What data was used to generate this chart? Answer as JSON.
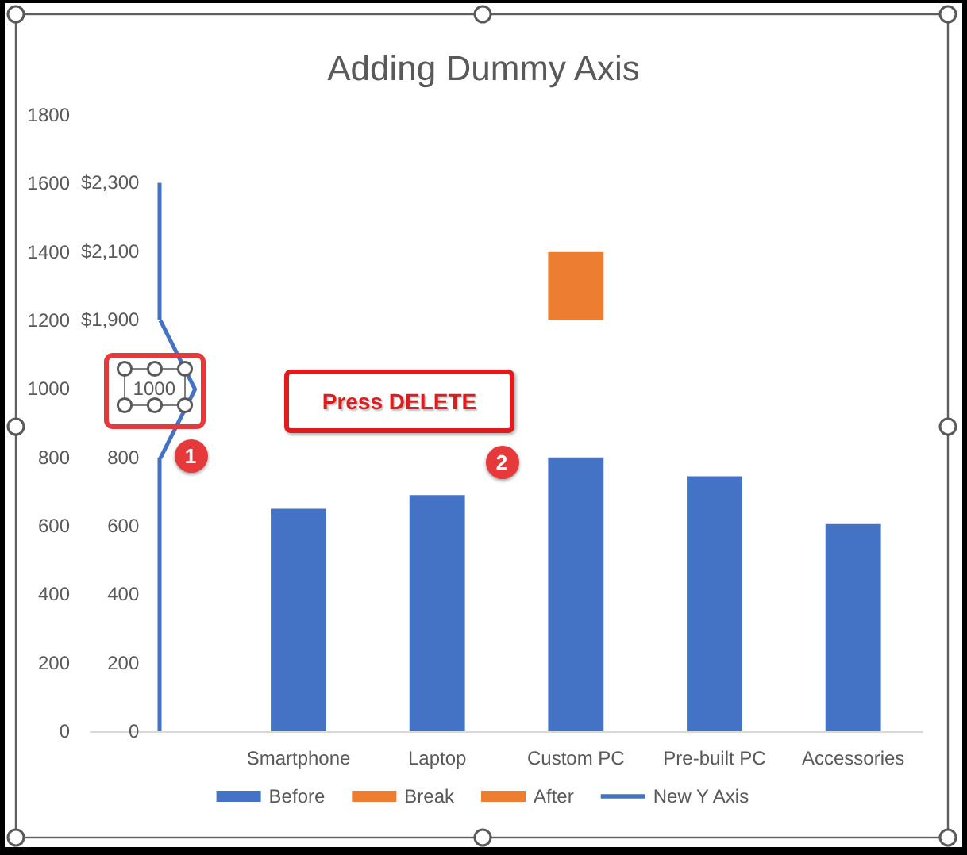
{
  "chart_data": {
    "type": "bar",
    "title": "Adding Dummy Axis",
    "categories": [
      null,
      "Smartphone",
      "Laptop",
      "Custom PC",
      "Pre-built PC",
      "Accessories"
    ],
    "series": [
      {
        "name": "Before",
        "color": "#4472c4",
        "values": [
          null,
          650,
          690,
          800,
          745,
          605
        ]
      },
      {
        "name": "Break",
        "color": "#ed7d31",
        "values": [
          null,
          null,
          null,
          null,
          null,
          null
        ]
      },
      {
        "name": "After",
        "color": "#ed7d31",
        "values": [
          null,
          null,
          null,
          200,
          null,
          null
        ],
        "base": [
          null,
          null,
          null,
          1200,
          null,
          null
        ]
      },
      {
        "name": "New Y Axis",
        "type": "line",
        "axis": "y2",
        "color": "#4472c4",
        "values": [
          null,
          null,
          null,
          null,
          null,
          null
        ]
      }
    ],
    "ylim": [
      0,
      1800
    ],
    "yticks": [
      0,
      200,
      400,
      600,
      800,
      1000,
      1200,
      1400,
      1600,
      1800
    ],
    "y2lim": [
      0,
      800
    ],
    "y2ticks": [
      0,
      200,
      400,
      600,
      800
    ],
    "y3lim": [
      1900,
      2300
    ],
    "y3ticks": [
      {
        "value": 1900,
        "label": "$1,900"
      },
      {
        "value": 2100,
        "label": "$2,100"
      },
      {
        "value": 2300,
        "label": "$2,300"
      }
    ],
    "grid": false,
    "legend": "bottom",
    "annotations": [
      "Press DELETE",
      "1",
      "2",
      {
        "text": "1000",
        "y": 1000
      }
    ]
  }
}
